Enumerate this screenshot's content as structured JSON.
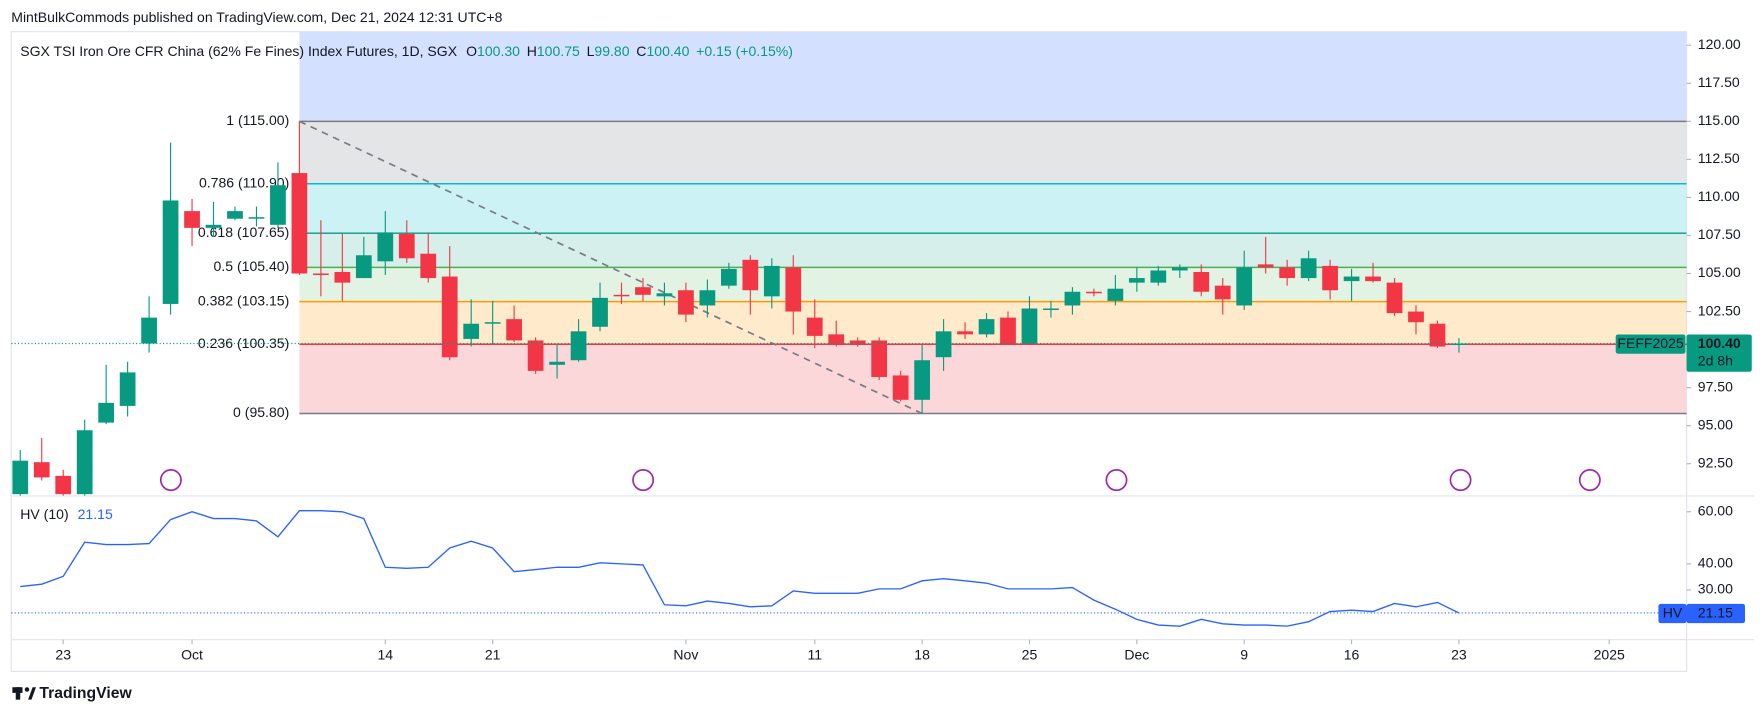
{
  "chart_data": {
    "type": "candlestick",
    "header": "MintBulkCommods published on TradingView.com, Dec 21, 2024 12:31 UTC+8",
    "title": "SGX TSI Iron Ore CFR China (62% Fe Fines) Index Futures, 1D, SGX",
    "ohlc_legend": [
      {
        "key": "O",
        "value": "100.30"
      },
      {
        "key": "H",
        "value": "100.75"
      },
      {
        "key": "L",
        "value": "99.80"
      },
      {
        "key": "C",
        "value": "100.40"
      }
    ],
    "change": "+0.15 (+0.15%)",
    "open": [
      90.5,
      92.6,
      91.7,
      90.5,
      95.2,
      96.3,
      100.4,
      103.0,
      109.1,
      108.0,
      108.6,
      108.6,
      108.2,
      111.6,
      105.0,
      105.1,
      104.7,
      105.8,
      107.6,
      106.3,
      104.8,
      100.7,
      101.7,
      102.0,
      100.6,
      99.0,
      99.3,
      101.5,
      103.6,
      104.1,
      103.5,
      103.9,
      102.9,
      104.2,
      105.9,
      103.5,
      105.4,
      102.1,
      101.0,
      100.6,
      100.6,
      98.3,
      96.7,
      99.5,
      101.2,
      101.0,
      102.1,
      100.4,
      102.6,
      102.9,
      103.8,
      103.2,
      104.4,
      104.4,
      105.2,
      105.1,
      104.2,
      102.9,
      105.6,
      105.4,
      104.7,
      105.5,
      104.5,
      104.8,
      104.4,
      102.5,
      101.7,
      100.3
    ],
    "high": [
      93.4,
      94.2,
      92.1,
      95.4,
      99.0,
      99.2,
      103.5,
      113.6,
      109.9,
      109.7,
      109.4,
      109.4,
      112.3,
      115.0,
      108.5,
      107.6,
      107.4,
      109.1,
      108.5,
      107.7,
      106.8,
      103.3,
      103.2,
      102.9,
      100.8,
      100.3,
      102.0,
      104.4,
      104.4,
      104.7,
      104.4,
      104.4,
      104.6,
      105.7,
      106.2,
      106.0,
      106.2,
      103.3,
      101.9,
      100.8,
      100.8,
      98.6,
      100.3,
      102.0,
      101.8,
      102.4,
      102.5,
      103.5,
      103.2,
      104.1,
      104.0,
      104.9,
      105.4,
      105.5,
      105.6,
      105.6,
      104.7,
      106.5,
      107.4,
      105.9,
      106.5,
      105.9,
      105.3,
      105.7,
      104.7,
      102.9,
      101.9,
      100.75
    ],
    "low": [
      90.4,
      91.4,
      90.4,
      90.4,
      95.1,
      95.6,
      99.8,
      102.3,
      106.8,
      107.4,
      108.5,
      108.1,
      108.0,
      104.9,
      103.5,
      103.2,
      104.7,
      104.9,
      105.7,
      104.4,
      99.3,
      100.2,
      100.4,
      100.5,
      98.4,
      98.1,
      99.2,
      101.2,
      103.0,
      103.2,
      102.9,
      101.8,
      102.1,
      104.0,
      102.3,
      102.7,
      101.0,
      100.1,
      100.2,
      100.2,
      98.0,
      96.6,
      95.8,
      98.6,
      100.7,
      100.8,
      100.3,
      100.4,
      102.1,
      102.3,
      103.5,
      102.9,
      103.8,
      104.2,
      104.7,
      103.5,
      102.3,
      102.6,
      105.0,
      104.2,
      104.5,
      103.3,
      103.2,
      104.4,
      102.2,
      101.0,
      100.1,
      99.8
    ],
    "close": [
      92.7,
      91.6,
      90.5,
      94.7,
      96.5,
      98.5,
      102.1,
      109.8,
      108.0,
      108.2,
      109.1,
      108.7,
      110.8,
      105.0,
      104.9,
      104.4,
      106.2,
      107.7,
      106.0,
      104.7,
      99.5,
      101.7,
      101.8,
      100.6,
      98.6,
      99.2,
      101.2,
      103.4,
      103.5,
      103.6,
      103.7,
      102.3,
      103.9,
      105.3,
      103.9,
      105.5,
      102.5,
      100.9,
      100.4,
      100.4,
      98.2,
      96.7,
      99.3,
      101.2,
      101.0,
      102.0,
      100.4,
      102.7,
      102.7,
      103.8,
      103.7,
      104.0,
      104.7,
      105.2,
      105.4,
      103.8,
      103.3,
      105.4,
      105.4,
      104.7,
      106.0,
      103.9,
      104.8,
      104.5,
      102.4,
      101.8,
      100.2,
      100.4
    ],
    "up_color": "#089981",
    "down_color": "#f23645",
    "xlim": [
      -0.42,
      77.6
    ],
    "xticks": [
      {
        "value": 2,
        "label": "23"
      },
      {
        "value": 8,
        "label": "Oct"
      },
      {
        "value": 17,
        "label": "14"
      },
      {
        "value": 22,
        "label": "21"
      },
      {
        "value": 31,
        "label": "Nov"
      },
      {
        "value": 37,
        "label": "11"
      },
      {
        "value": 42,
        "label": "18"
      },
      {
        "value": 47,
        "label": "25"
      },
      {
        "value": 52,
        "label": "Dec"
      },
      {
        "value": 57,
        "label": "9"
      },
      {
        "value": 62,
        "label": "16"
      },
      {
        "value": 67,
        "label": "23"
      },
      {
        "value": 74,
        "label": "2025"
      }
    ],
    "ylim": [
      90.46,
      120.89
    ],
    "yticks": [
      {
        "value": 120,
        "label": "120.00"
      },
      {
        "value": 117.5,
        "label": "117.50"
      },
      {
        "value": 115,
        "label": "115.00"
      },
      {
        "value": 112.5,
        "label": "112.50"
      },
      {
        "value": 110,
        "label": "110.00"
      },
      {
        "value": 107.5,
        "label": "107.50"
      },
      {
        "value": 105,
        "label": "105.00"
      },
      {
        "value": 102.5,
        "label": "102.50"
      },
      {
        "value": 100,
        "label": "100.00"
      },
      {
        "value": 97.5,
        "label": "97.50"
      },
      {
        "value": 95,
        "label": "95.00"
      },
      {
        "value": 92.5,
        "label": "92.50"
      }
    ],
    "fib_upper_color": "rgba(41,98,255,0.2)",
    "fib_start": 13,
    "fib_levels": [
      {
        "price": 115.0,
        "label": "1 (115.00)",
        "color": "#787b86",
        "band_color": "rgba(120,123,134,0.2)"
      },
      {
        "price": 110.9,
        "label": "0.786 (110.90)",
        "color": "#00bcd4",
        "band_color": "rgba(0,188,212,0.2)"
      },
      {
        "price": 107.65,
        "label": "0.618 (107.65)",
        "color": "#089981",
        "band_color": "rgba(8,153,129,0.16)"
      },
      {
        "price": 105.4,
        "label": "0.5 (105.40)",
        "color": "#4caf50",
        "band_color": "rgba(76,175,80,0.16)"
      },
      {
        "price": 103.15,
        "label": "0.382 (103.15)",
        "color": "#ff9800",
        "band_color": "rgba(255,152,0,0.2)"
      },
      {
        "price": 100.35,
        "label": "0.236 (100.35)",
        "color": "#f23645",
        "band_color": "rgba(242,54,69,0.2)"
      },
      {
        "price": 95.8,
        "label": "0 (95.80)",
        "color": "#787b86"
      }
    ],
    "trendline": {
      "from": [
        13,
        115.0
      ],
      "to": [
        42,
        95.8
      ],
      "color": "#787b86"
    },
    "price_label": {
      "symbol": "FEFF2025",
      "value": 100.4,
      "value_label": "100.40",
      "countdown": "2d 8h"
    },
    "indicator": {
      "type": "line",
      "name": "HV (10)",
      "short_name": "HV",
      "value": 21.15,
      "value_label": "21.15",
      "color": "#2962ff",
      "values": [
        31.3,
        32.2,
        35.2,
        48.3,
        47.4,
        47.4,
        47.8,
        57.0,
        60.0,
        57.4,
        57.4,
        56.5,
        50.4,
        60.4,
        60.4,
        60.0,
        57.4,
        38.7,
        38.3,
        38.7,
        46.1,
        48.7,
        46.1,
        37.0,
        37.8,
        38.7,
        38.7,
        40.4,
        40.0,
        39.6,
        24.3,
        23.9,
        25.7,
        24.8,
        23.5,
        23.9,
        29.6,
        28.7,
        28.7,
        28.7,
        30.4,
        30.4,
        33.5,
        34.3,
        33.5,
        32.6,
        30.4,
        30.4,
        30.4,
        30.9,
        26.1,
        22.6,
        18.7,
        16.5,
        16.1,
        18.7,
        17.0,
        16.5,
        16.5,
        16.1,
        17.8,
        21.7,
        22.2,
        21.7,
        24.8,
        23.5,
        25.2,
        21.15
      ],
      "ylim": [
        10.9,
        66.1
      ],
      "yticks": [
        {
          "value": 60,
          "label": "60.00"
        },
        {
          "value": 40,
          "label": "40.00"
        },
        {
          "value": 30,
          "label": "30.00"
        }
      ]
    },
    "branding": "TradingView"
  }
}
